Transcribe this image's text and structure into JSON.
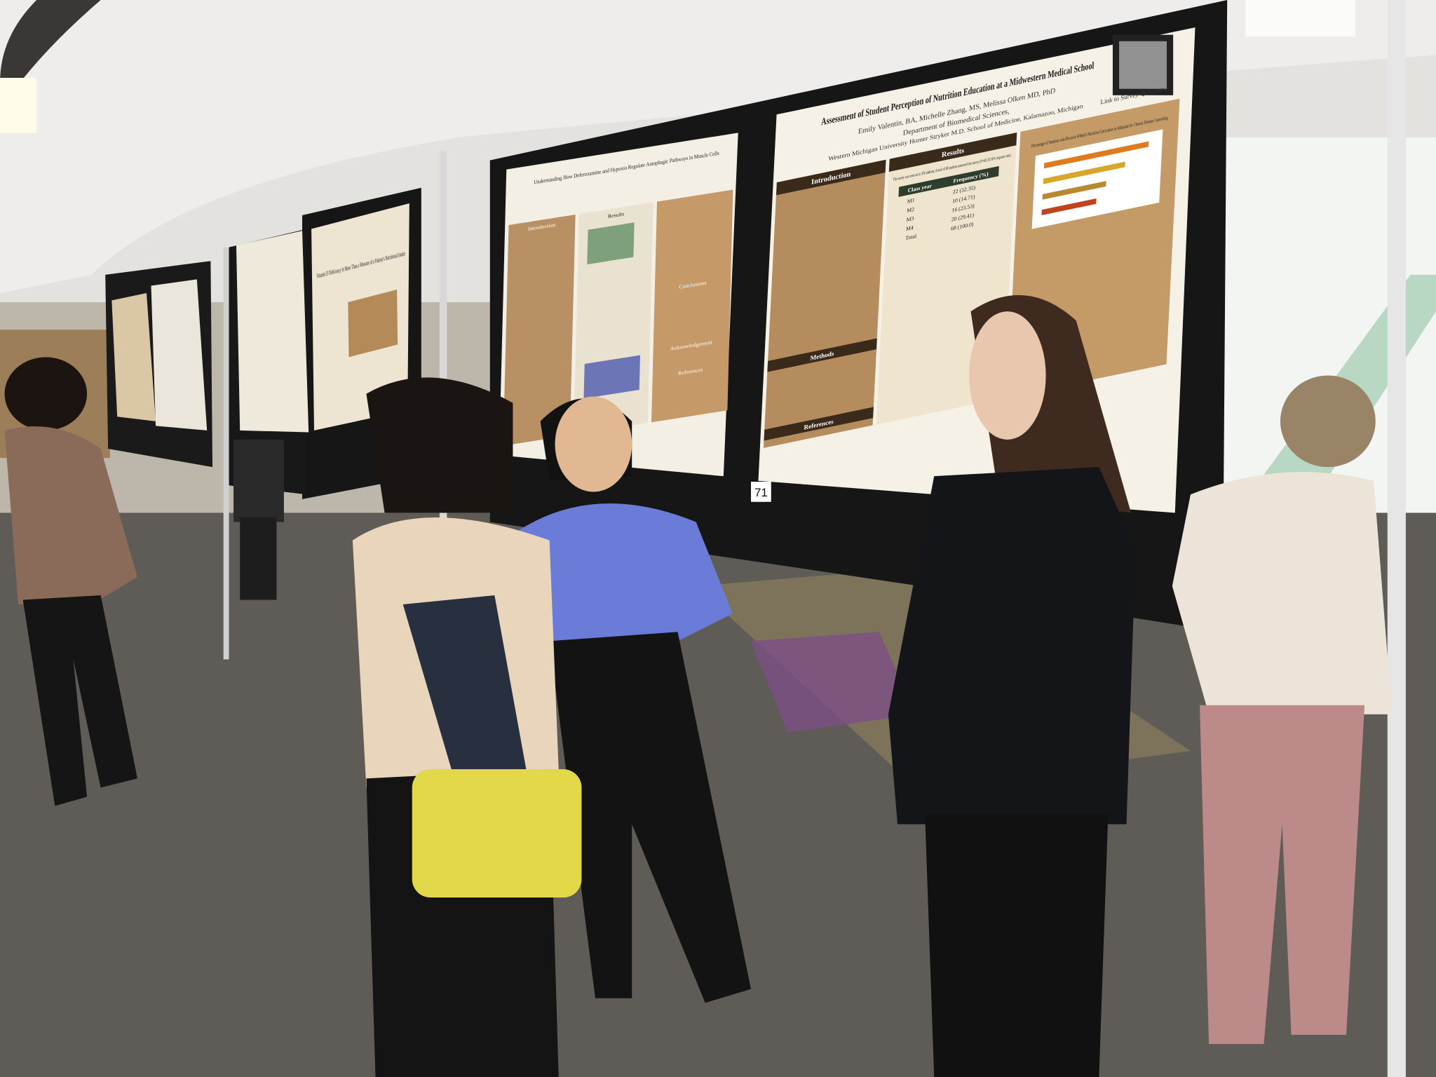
{
  "main_poster": {
    "title": "Assessment of Student Perception of Nutrition Education at a Midwestern Medical School",
    "authors": "Emily Valentin, BA, Michelle Zhang, MS, Melissa Olken MD, PhD",
    "department": "Department of Biomedical Sciences,",
    "institution": "Western Michigan University Homer Stryker M.D. School of Medicine, Kalamazoo, Michigan",
    "qr_caption": "Link to Survey Questions",
    "sections": [
      "Introduction",
      "Results",
      "Methods",
      "References"
    ],
    "results_text": "The survey was sent out to 334 students. A total of 68 students answered the survey (N=68; 20.36% response rate).",
    "table": {
      "header": [
        "Class year",
        "Frequency (%)"
      ],
      "rows": [
        [
          "M1",
          "22 (32.35)"
        ],
        [
          "M2",
          "10 (14.71)"
        ],
        [
          "M3",
          "16 (23.53)"
        ],
        [
          "M4",
          "20 (29.41)"
        ],
        [
          "Total",
          "68 (100.0)"
        ]
      ]
    },
    "chart_title": "Percentage of Students who Perceive WMed's Nutrition Curriculum as Adequate for Chronic Disease Counseling",
    "board_number": "71"
  },
  "second_poster": {
    "title": "Understanding How Deferoxamine and Hypoxia Regulate Autophagic Pathways in Muscle Cells",
    "sections": [
      "Introduction",
      "Results",
      "Conclusions",
      "Acknowledgement",
      "References"
    ]
  },
  "third_poster": {
    "title": "Vitamin D Deficiency Is More Than a Measure of a Patient's Nutritional Intake"
  }
}
